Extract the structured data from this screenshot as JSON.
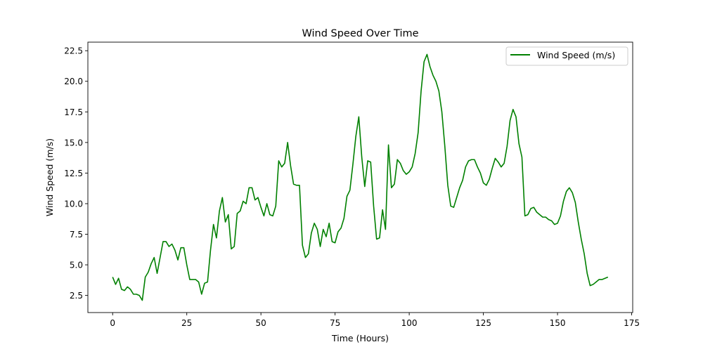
{
  "chart_data": {
    "type": "line",
    "title": "Wind Speed Over Time",
    "xlabel": "Time (Hours)",
    "ylabel": "Wind Speed (m/s)",
    "xlim": [
      -8.35,
      175.35
    ],
    "ylim": [
      1.1,
      23.2
    ],
    "xticks": [
      0,
      25,
      50,
      75,
      100,
      125,
      150,
      175
    ],
    "xtick_labels": [
      "0",
      "25",
      "50",
      "75",
      "100",
      "125",
      "150",
      "175"
    ],
    "yticks": [
      2.5,
      5.0,
      7.5,
      10.0,
      12.5,
      15.0,
      17.5,
      20.0,
      22.5
    ],
    "ytick_labels": [
      "2.5",
      "5.0",
      "7.5",
      "10.0",
      "12.5",
      "15.0",
      "17.5",
      "20.0",
      "22.5"
    ],
    "grid": false,
    "legend_position": "top-right",
    "series": [
      {
        "name": "Wind Speed (m/s)",
        "color": "#008000",
        "x": [
          0,
          1,
          2,
          3,
          4,
          5,
          6,
          7,
          8,
          9,
          10,
          11,
          12,
          13,
          14,
          15,
          16,
          17,
          18,
          19,
          20,
          21,
          22,
          23,
          24,
          25,
          26,
          27,
          28,
          29,
          30,
          31,
          32,
          33,
          34,
          35,
          36,
          37,
          38,
          39,
          40,
          41,
          42,
          43,
          44,
          45,
          46,
          47,
          48,
          49,
          50,
          51,
          52,
          53,
          54,
          55,
          56,
          57,
          58,
          59,
          60,
          61,
          62,
          63,
          64,
          65,
          66,
          67,
          68,
          69,
          70,
          71,
          72,
          73,
          74,
          75,
          76,
          77,
          78,
          79,
          80,
          81,
          82,
          83,
          84,
          85,
          86,
          87,
          88,
          89,
          90,
          91,
          92,
          93,
          94,
          95,
          96,
          97,
          98,
          99,
          100,
          101,
          102,
          103,
          104,
          105,
          106,
          107,
          108,
          109,
          110,
          111,
          112,
          113,
          114,
          115,
          116,
          117,
          118,
          119,
          120,
          121,
          122,
          123,
          124,
          125,
          126,
          127,
          128,
          129,
          130,
          131,
          132,
          133,
          134,
          135,
          136,
          137,
          138,
          139,
          140,
          141,
          142,
          143,
          144,
          145,
          146,
          147,
          148,
          149,
          150,
          151,
          152,
          153,
          154,
          155,
          156,
          157,
          158,
          159,
          160,
          161,
          162,
          163,
          164,
          165,
          166,
          167
        ],
        "y": [
          4.0,
          3.4,
          3.9,
          3.0,
          2.9,
          3.2,
          3.0,
          2.6,
          2.6,
          2.5,
          2.1,
          4.0,
          4.4,
          5.1,
          5.6,
          4.3,
          5.6,
          6.9,
          6.9,
          6.5,
          6.7,
          6.2,
          5.4,
          6.4,
          6.4,
          5.0,
          3.8,
          3.8,
          3.8,
          3.6,
          2.6,
          3.5,
          3.6,
          6.2,
          8.3,
          7.2,
          9.4,
          10.5,
          8.5,
          9.1,
          6.3,
          6.5,
          9.2,
          9.4,
          10.2,
          10.0,
          11.3,
          11.3,
          10.3,
          10.5,
          9.7,
          9.0,
          10.0,
          9.1,
          9.0,
          9.8,
          13.5,
          13.0,
          13.3,
          15.0,
          13.1,
          11.6,
          11.5,
          11.5,
          6.6,
          5.6,
          5.9,
          7.6,
          8.4,
          7.9,
          6.5,
          7.9,
          7.3,
          8.4,
          6.9,
          6.8,
          7.7,
          8.0,
          8.8,
          10.6,
          11.1,
          13.2,
          15.5,
          17.1,
          13.8,
          11.4,
          13.5,
          13.4,
          9.8,
          7.1,
          7.2,
          9.5,
          7.9,
          14.8,
          11.3,
          11.6,
          13.6,
          13.3,
          12.7,
          12.4,
          12.6,
          13.0,
          14.1,
          15.8,
          19.2,
          21.6,
          22.2,
          21.2,
          20.5,
          20.0,
          19.2,
          17.5,
          14.7,
          11.5,
          9.8,
          9.7,
          10.5,
          11.3,
          11.9,
          13.0,
          13.5,
          13.6,
          13.6,
          13.0,
          12.5,
          11.7,
          11.5,
          12.0,
          12.9,
          13.7,
          13.4,
          13.0,
          13.3,
          14.7,
          16.8,
          17.7,
          17.1,
          14.9,
          13.8,
          9.0,
          9.1,
          9.6,
          9.7,
          9.3,
          9.1,
          8.9,
          8.9,
          8.7,
          8.6,
          8.3,
          8.4,
          9.0,
          10.2,
          11.0,
          11.3,
          10.9,
          10.1,
          8.5,
          7.1,
          5.9,
          4.3,
          3.3,
          3.4,
          3.6,
          3.8,
          3.8,
          3.9,
          4.0
        ]
      }
    ]
  }
}
